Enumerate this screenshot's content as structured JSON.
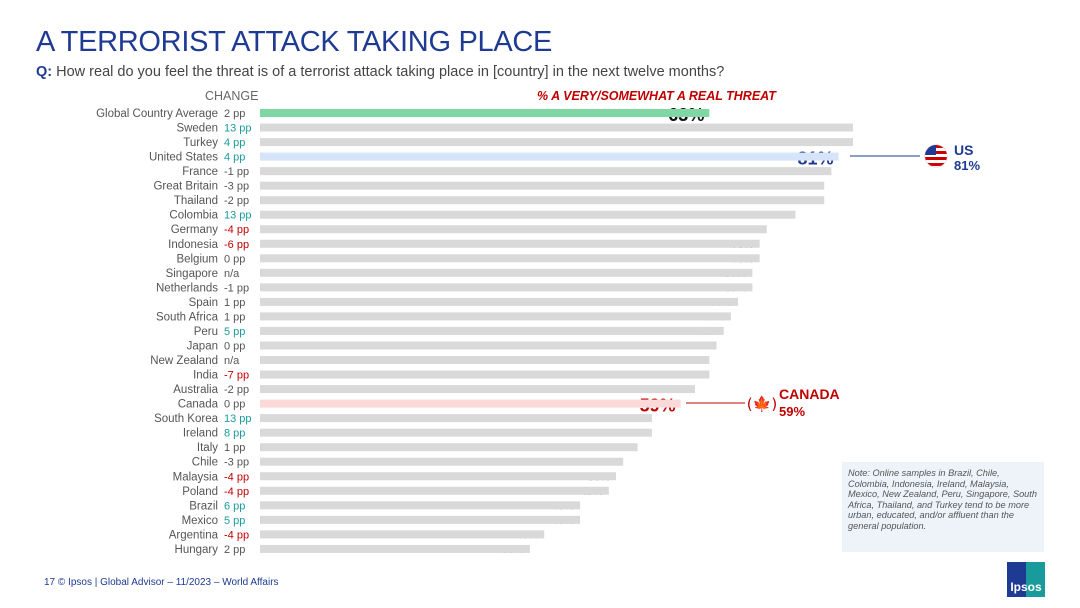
{
  "title": "A TERRORIST ATTACK TAKING PLACE",
  "question_prefix": "Q:",
  "question": "How real do you feel the threat is of a terrorist attack taking place in [country] in the next twelve months?",
  "change_header": "CHANGE",
  "note": "Note: Online samples in Brazil, Chile, Colombia, Indonesia, Ireland, Malaysia, Mexico, New Zealand, Peru, Singapore, South Africa, Thailand, and Turkey tend to be more urban, educated, and/or affluent than the general population.",
  "footer": "17   © Ipsos | Global Advisor – 11/2023 – World Affairs",
  "logo": "Ipsos",
  "callouts": {
    "us": {
      "name": "US",
      "value": "81%"
    },
    "canada": {
      "name": "CANADA",
      "value": "59%"
    }
  },
  "colors": {
    "bar": "#d9d9d9",
    "global": "#7fd8a4",
    "us": "#d6e4fa",
    "canada": "#fcd9d9",
    "pos": "#1a9b9b",
    "neg": "#c00000",
    "neutral": "#555555",
    "navy": "#1f3a93"
  },
  "chart_data": {
    "type": "bar",
    "orientation": "horizontal",
    "series_name": "% A VERY/SOMEWHAT A REAL THREAT",
    "xlim": [
      0,
      100
    ],
    "categories": [
      "Global Country Average",
      "Sweden",
      "Turkey",
      "United States",
      "France",
      "Great Britain",
      "Thailand",
      "Colombia",
      "Germany",
      "Indonesia",
      "Belgium",
      "Singapore",
      "Netherlands",
      "Spain",
      "South Africa",
      "Peru",
      "Japan",
      "New Zealand",
      "India",
      "Australia",
      "Canada",
      "South Korea",
      "Ireland",
      "Italy",
      "Chile",
      "Malaysia",
      "Poland",
      "Brazil",
      "Mexico",
      "Argentina",
      "Hungary"
    ],
    "values": [
      63,
      83,
      83,
      81,
      80,
      79,
      79,
      75,
      71,
      70,
      70,
      69,
      69,
      67,
      66,
      65,
      64,
      63,
      63,
      61,
      59,
      55,
      55,
      53,
      51,
      50,
      49,
      45,
      45,
      40,
      38
    ],
    "change": [
      "2 pp",
      "13 pp",
      "4 pp",
      "4 pp",
      "-1 pp",
      "-3 pp",
      "-2 pp",
      "13 pp",
      "-4 pp",
      "-6 pp",
      "0 pp",
      "n/a",
      "-1 pp",
      "1 pp",
      "1 pp",
      "5 pp",
      "0 pp",
      "n/a",
      "-7 pp",
      "-2 pp",
      "0 pp",
      "13 pp",
      "8 pp",
      "1 pp",
      "-3 pp",
      "-4 pp",
      "-4 pp",
      "6 pp",
      "5 pp",
      "-4 pp",
      "2 pp"
    ],
    "change_color": [
      "neutral",
      "pos",
      "pos",
      "pos",
      "neutral",
      "neutral",
      "neutral",
      "pos",
      "neg",
      "neg",
      "neutral",
      "neutral",
      "neutral",
      "neutral",
      "neutral",
      "pos",
      "neutral",
      "neutral",
      "neg",
      "neutral",
      "neutral",
      "pos",
      "pos",
      "neutral",
      "neutral",
      "neg",
      "neg",
      "pos",
      "pos",
      "neg",
      "neutral"
    ]
  }
}
